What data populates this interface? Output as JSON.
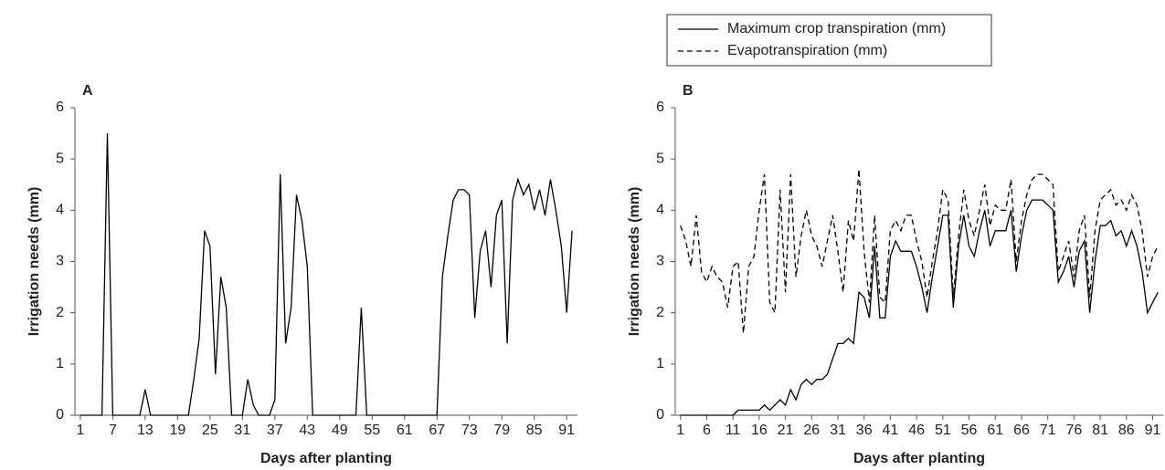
{
  "chart_data": [
    {
      "type": "line",
      "label": "A",
      "xlabel": "Days after planting",
      "ylabel": "Irrigation needs (mm)",
      "x": [
        1,
        2,
        3,
        4,
        5,
        6,
        7,
        8,
        9,
        10,
        11,
        12,
        13,
        14,
        15,
        16,
        17,
        18,
        19,
        20,
        21,
        22,
        23,
        24,
        25,
        26,
        27,
        28,
        29,
        30,
        31,
        32,
        33,
        34,
        35,
        36,
        37,
        38,
        39,
        40,
        41,
        42,
        43,
        44,
        45,
        46,
        47,
        48,
        49,
        50,
        51,
        52,
        53,
        54,
        55,
        56,
        57,
        58,
        59,
        60,
        61,
        62,
        63,
        64,
        65,
        66,
        67,
        68,
        69,
        70,
        71,
        72,
        73,
        74,
        75,
        76,
        77,
        78,
        79,
        80,
        81,
        82,
        83,
        84,
        85,
        86,
        87,
        88,
        89,
        90,
        91,
        92
      ],
      "values": [
        0,
        0,
        0,
        0,
        0,
        5.5,
        0,
        0,
        0,
        0,
        0,
        0,
        0.5,
        0,
        0,
        0,
        0,
        0,
        0,
        0,
        0,
        0.7,
        1.5,
        3.6,
        3.3,
        0.8,
        2.7,
        2.1,
        0,
        0,
        0,
        0.7,
        0.2,
        0,
        0,
        0,
        0.3,
        4.7,
        1.4,
        2.1,
        4.3,
        3.8,
        2.9,
        0,
        0,
        0,
        0,
        0,
        0,
        0,
        0,
        0,
        2.1,
        0,
        0,
        0,
        0,
        0,
        0,
        0,
        0,
        0,
        0,
        0,
        0,
        0,
        0,
        2.7,
        3.5,
        4.2,
        4.4,
        4.4,
        4.3,
        1.9,
        3.2,
        3.6,
        2.5,
        3.9,
        4.2,
        1.4,
        4.2,
        4.6,
        4.3,
        4.5,
        4.0,
        4.4,
        3.9,
        4.6,
        4.0,
        3.3,
        2.0,
        3.6
      ],
      "color": "#000000",
      "xlim": [
        0,
        93
      ],
      "xticks": [
        1,
        7,
        13,
        19,
        25,
        31,
        37,
        43,
        49,
        55,
        61,
        67,
        73,
        79,
        85,
        91
      ],
      "ylim": [
        0,
        6
      ],
      "yticks": [
        0,
        1,
        2,
        3,
        4,
        5,
        6
      ]
    },
    {
      "type": "line",
      "label": "B",
      "xlabel": "Days after planting",
      "ylabel": "Irrigation needs (mm)",
      "x": [
        1,
        2,
        3,
        4,
        5,
        6,
        7,
        8,
        9,
        10,
        11,
        12,
        13,
        14,
        15,
        16,
        17,
        18,
        19,
        20,
        21,
        22,
        23,
        24,
        25,
        26,
        27,
        28,
        29,
        30,
        31,
        32,
        33,
        34,
        35,
        36,
        37,
        38,
        39,
        40,
        41,
        42,
        43,
        44,
        45,
        46,
        47,
        48,
        49,
        50,
        51,
        52,
        53,
        54,
        55,
        56,
        57,
        58,
        59,
        60,
        61,
        62,
        63,
        64,
        65,
        66,
        67,
        68,
        69,
        70,
        71,
        72,
        73,
        74,
        75,
        76,
        77,
        78,
        79,
        80,
        81,
        82,
        83,
        84,
        85,
        86,
        87,
        88,
        89,
        90,
        91,
        92
      ],
      "series": [
        {
          "name": "Maximum crop transpiration (mm)",
          "color": "#000000",
          "dashed": false,
          "values": [
            0,
            0,
            0,
            0,
            0,
            0,
            0,
            0,
            0,
            0,
            0,
            0.1,
            0.1,
            0.1,
            0.1,
            0.1,
            0.2,
            0.1,
            0.2,
            0.3,
            0.2,
            0.5,
            0.3,
            0.6,
            0.7,
            0.6,
            0.7,
            0.7,
            0.8,
            1.1,
            1.4,
            1.4,
            1.5,
            1.4,
            2.4,
            2.3,
            1.9,
            3.3,
            1.9,
            1.9,
            3.1,
            3.4,
            3.2,
            3.2,
            3.2,
            2.9,
            2.5,
            2.0,
            2.7,
            3.3,
            3.9,
            3.9,
            2.1,
            3.3,
            3.9,
            3.3,
            3.1,
            3.6,
            4.0,
            3.3,
            3.6,
            3.6,
            3.6,
            4.0,
            2.8,
            3.5,
            4.0,
            4.2,
            4.2,
            4.2,
            4.1,
            4.0,
            2.6,
            2.8,
            3.1,
            2.5,
            3.2,
            3.4,
            2.0,
            3.0,
            3.7,
            3.7,
            3.8,
            3.5,
            3.6,
            3.3,
            3.6,
            3.3,
            2.8,
            2.0,
            2.2,
            2.4
          ]
        },
        {
          "name": "Evapotranspiration (mm)",
          "color": "#000000",
          "dashed": true,
          "values": [
            3.7,
            3.4,
            2.9,
            3.9,
            2.8,
            2.6,
            2.9,
            2.7,
            2.6,
            2.1,
            2.9,
            3.0,
            1.6,
            2.9,
            3.1,
            4.0,
            4.7,
            2.2,
            2.0,
            4.4,
            2.4,
            4.7,
            2.7,
            3.5,
            4.0,
            3.5,
            3.3,
            2.9,
            3.4,
            3.9,
            3.2,
            2.4,
            3.8,
            3.4,
            4.8,
            3.2,
            2.2,
            3.9,
            2.3,
            2.2,
            3.6,
            3.8,
            3.6,
            3.9,
            3.9,
            3.4,
            3.0,
            2.3,
            3.0,
            3.6,
            4.4,
            4.2,
            2.3,
            3.5,
            4.4,
            3.8,
            3.5,
            4.0,
            4.5,
            3.7,
            4.1,
            4.0,
            4.0,
            4.6,
            3.0,
            3.8,
            4.3,
            4.6,
            4.7,
            4.7,
            4.6,
            4.5,
            2.8,
            3.1,
            3.4,
            2.7,
            3.6,
            3.9,
            2.3,
            3.6,
            4.2,
            4.3,
            4.4,
            4.1,
            4.2,
            4.0,
            4.3,
            4.1,
            3.6,
            2.7,
            3.1,
            3.3
          ]
        }
      ],
      "xlim": [
        0,
        93
      ],
      "xticks": [
        1,
        6,
        11,
        16,
        21,
        26,
        31,
        36,
        41,
        46,
        51,
        56,
        61,
        66,
        71,
        76,
        81,
        86,
        91
      ],
      "ylim": [
        0,
        6
      ],
      "yticks": [
        0,
        1,
        2,
        3,
        4,
        5,
        6
      ]
    }
  ]
}
